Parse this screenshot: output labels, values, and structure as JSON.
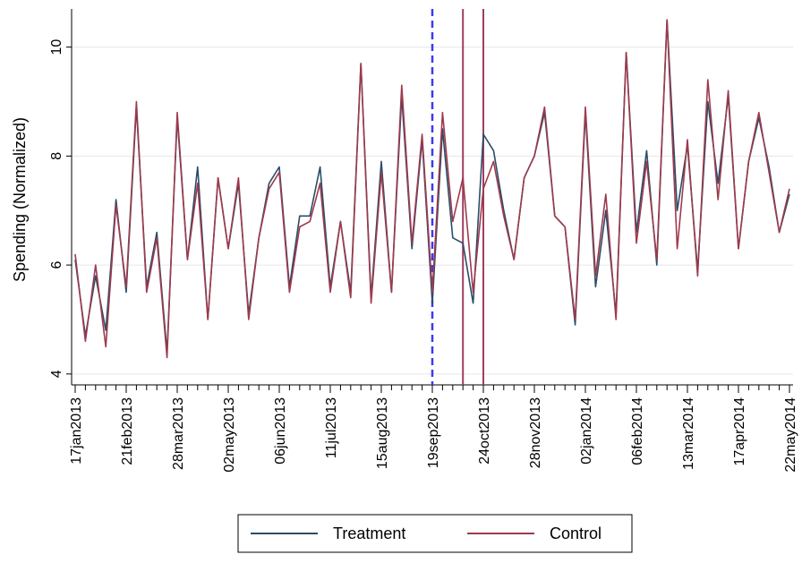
{
  "chart_data": {
    "type": "line",
    "title": "",
    "xlabel": "",
    "ylabel": "Spending (Normalized)",
    "ylim": [
      3.8,
      10.7
    ],
    "yticks": [
      4,
      6,
      8,
      10
    ],
    "grid": true,
    "legend_position": "bottom",
    "x": [
      "17jan2013",
      "24jan2013",
      "31jan2013",
      "07feb2013",
      "14feb2013",
      "21feb2013",
      "28feb2013",
      "07mar2013",
      "14mar2013",
      "21mar2013",
      "28mar2013",
      "04apr2013",
      "11apr2013",
      "18apr2013",
      "25apr2013",
      "02may2013",
      "09may2013",
      "16may2013",
      "23may2013",
      "30may2013",
      "06jun2013",
      "13jun2013",
      "20jun2013",
      "27jun2013",
      "04jul2013",
      "11jul2013",
      "18jul2013",
      "25jul2013",
      "01aug2013",
      "08aug2013",
      "15aug2013",
      "22aug2013",
      "29aug2013",
      "05sep2013",
      "12sep2013",
      "19sep2013",
      "26sep2013",
      "03oct2013",
      "10oct2013",
      "17oct2013",
      "24oct2013",
      "31oct2013",
      "07nov2013",
      "14nov2013",
      "21nov2013",
      "28nov2013",
      "05dec2013",
      "12dec2013",
      "19dec2013",
      "26dec2013",
      "02jan2014",
      "09jan2014",
      "16jan2014",
      "23jan2014",
      "30jan2014",
      "06feb2014",
      "13feb2014",
      "20feb2014",
      "27feb2014",
      "06mar2014",
      "13mar2014",
      "20mar2014",
      "27mar2014",
      "03apr2014",
      "10apr2014",
      "17apr2014",
      "24apr2014",
      "01may2014",
      "08may2014",
      "15may2014",
      "22may2014"
    ],
    "x_tick_labels": [
      "17jan2013",
      "21feb2013",
      "28mar2013",
      "02may2013",
      "06jun2013",
      "11jul2013",
      "15aug2013",
      "19sep2013",
      "24oct2013",
      "28nov2013",
      "02jan2014",
      "06feb2014",
      "13mar2014",
      "17apr2014",
      "22may2014"
    ],
    "series": [
      {
        "name": "Treatment",
        "color": "#2a4d69",
        "values": [
          6.1,
          4.7,
          5.8,
          4.8,
          7.2,
          5.5,
          8.9,
          5.6,
          6.6,
          4.4,
          8.7,
          6.1,
          7.8,
          5.0,
          7.6,
          6.3,
          7.5,
          5.1,
          6.5,
          7.5,
          7.8,
          5.6,
          6.9,
          6.9,
          7.8,
          5.6,
          6.8,
          5.5,
          9.7,
          5.4,
          7.9,
          5.5,
          9.1,
          6.3,
          8.3,
          5.3,
          8.5,
          6.5,
          6.4,
          5.3,
          8.4,
          8.1,
          7.0,
          6.1,
          7.6,
          8.0,
          8.8,
          6.9,
          6.7,
          4.9,
          8.8,
          5.6,
          7.0,
          5.1,
          9.9,
          6.6,
          8.1,
          6.0,
          10.5,
          7.0,
          8.2,
          5.9,
          9.0,
          7.5,
          9.1,
          6.3,
          7.9,
          8.7,
          7.8,
          6.6,
          7.3
        ]
      },
      {
        "name": "Control",
        "color": "#9e3a4c",
        "values": [
          6.2,
          4.6,
          6.0,
          4.5,
          7.1,
          5.6,
          9.0,
          5.5,
          6.5,
          4.3,
          8.8,
          6.1,
          7.5,
          5.0,
          7.6,
          6.3,
          7.6,
          5.0,
          6.5,
          7.4,
          7.7,
          5.5,
          6.7,
          6.8,
          7.5,
          5.5,
          6.8,
          5.4,
          9.7,
          5.3,
          7.7,
          5.5,
          9.3,
          6.4,
          8.4,
          5.5,
          8.8,
          6.8,
          7.6,
          5.5,
          7.4,
          7.9,
          6.9,
          6.1,
          7.6,
          8.0,
          8.9,
          6.9,
          6.7,
          5.0,
          8.9,
          5.8,
          7.3,
          5.0,
          9.9,
          6.4,
          7.9,
          6.1,
          10.5,
          6.3,
          8.3,
          5.8,
          9.4,
          7.2,
          9.2,
          6.3,
          7.9,
          8.8,
          7.7,
          6.6,
          7.4
        ]
      }
    ],
    "markers": [
      {
        "x": "19sep2013",
        "style": "dashed",
        "color": "#3a3af5"
      },
      {
        "x": "10oct2013",
        "style": "solid",
        "color": "#a03d5e"
      },
      {
        "x": "24oct2013",
        "style": "solid",
        "color": "#a03d5e"
      }
    ]
  }
}
